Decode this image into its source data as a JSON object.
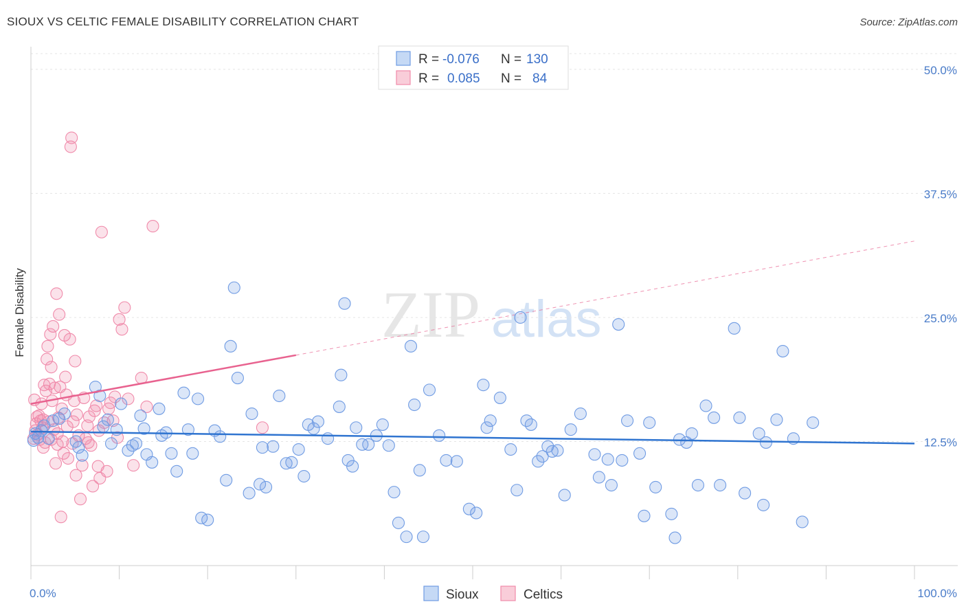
{
  "title": "SIOUX VS CELTIC FEMALE DISABILITY CORRELATION CHART",
  "source": "Source: ZipAtlas.com",
  "colors": {
    "sioux": "#6f9be3",
    "celtics": "#f08aaa",
    "sioux_line": "#2f74d0",
    "celtics_line": "#e8628f",
    "tick_text": "#4a7cc9"
  },
  "legend_box": [
    {
      "r_label": "R = ",
      "r_value": "-0.076",
      "n_label": "N = ",
      "n_value": "130"
    },
    {
      "r_label": "R = ",
      "r_value": "0.085",
      "n_label": "N = ",
      "n_value": "84"
    }
  ],
  "bottom_legend": [
    "Sioux",
    "Celtics"
  ],
  "watermark": {
    "zip": "ZIP",
    "atlas": "atlas"
  },
  "chart_data": {
    "type": "scatter",
    "title": "SIOUX VS CELTIC FEMALE DISABILITY CORRELATION CHART",
    "xlabel": "",
    "ylabel": "Female Disability",
    "xlim": [
      0,
      100
    ],
    "ylim": [
      0,
      52
    ],
    "x_tick_labels": [
      "0.0%",
      "100.0%"
    ],
    "y_ticks": [
      12.5,
      25.0,
      37.5,
      50.0
    ],
    "y_tick_labels": [
      "12.5%",
      "25.0%",
      "37.5%",
      "50.0%"
    ],
    "grid": true,
    "legend": "top-center",
    "series": [
      {
        "name": "Sioux",
        "trend": {
          "x": [
            0,
            100
          ],
          "y": [
            13.5,
            12.3
          ],
          "style": "solid"
        },
        "points": [
          [
            0.3,
            12.6
          ],
          [
            0.5,
            13.3
          ],
          [
            0.8,
            12.9
          ],
          [
            1.2,
            13.6
          ],
          [
            1.5,
            14.1
          ],
          [
            2.0,
            12.8
          ],
          [
            2.5,
            14.6
          ],
          [
            3.2,
            14.8
          ],
          [
            3.8,
            15.3
          ],
          [
            5.1,
            12.5
          ],
          [
            5.4,
            11.9
          ],
          [
            5.8,
            11.1
          ],
          [
            7.3,
            18.0
          ],
          [
            7.8,
            17.1
          ],
          [
            8.2,
            14.0
          ],
          [
            8.7,
            14.7
          ],
          [
            9.1,
            12.3
          ],
          [
            9.7,
            13.7
          ],
          [
            10.2,
            16.3
          ],
          [
            11.0,
            11.6
          ],
          [
            11.5,
            12.1
          ],
          [
            11.9,
            12.3
          ],
          [
            12.4,
            15.1
          ],
          [
            12.8,
            13.8
          ],
          [
            13.1,
            11.2
          ],
          [
            13.7,
            10.4
          ],
          [
            14.5,
            15.8
          ],
          [
            14.8,
            13.1
          ],
          [
            15.3,
            13.4
          ],
          [
            15.9,
            11.3
          ],
          [
            16.5,
            9.5
          ],
          [
            17.3,
            17.4
          ],
          [
            17.8,
            13.7
          ],
          [
            18.3,
            11.3
          ],
          [
            18.9,
            16.8
          ],
          [
            19.3,
            4.8
          ],
          [
            20.0,
            4.6
          ],
          [
            20.8,
            13.6
          ],
          [
            21.4,
            13.0
          ],
          [
            22.1,
            8.6
          ],
          [
            22.6,
            22.1
          ],
          [
            23.0,
            28.0
          ],
          [
            23.4,
            18.9
          ],
          [
            24.7,
            7.3
          ],
          [
            25.0,
            15.3
          ],
          [
            25.9,
            8.2
          ],
          [
            26.2,
            11.9
          ],
          [
            26.6,
            7.9
          ],
          [
            27.4,
            12.0
          ],
          [
            28.1,
            17.1
          ],
          [
            28.9,
            10.3
          ],
          [
            29.5,
            10.4
          ],
          [
            30.3,
            11.7
          ],
          [
            30.9,
            9.0
          ],
          [
            31.4,
            14.2
          ],
          [
            32.0,
            13.8
          ],
          [
            32.5,
            14.5
          ],
          [
            33.6,
            12.8
          ],
          [
            34.9,
            16.0
          ],
          [
            35.1,
            19.2
          ],
          [
            35.5,
            26.4
          ],
          [
            35.9,
            10.6
          ],
          [
            36.4,
            10.0
          ],
          [
            36.8,
            13.9
          ],
          [
            37.5,
            12.2
          ],
          [
            38.2,
            12.2
          ],
          [
            39.1,
            13.1
          ],
          [
            39.8,
            14.2
          ],
          [
            40.5,
            12.1
          ],
          [
            41.1,
            7.4
          ],
          [
            41.6,
            4.3
          ],
          [
            42.5,
            2.9
          ],
          [
            43.0,
            22.1
          ],
          [
            43.4,
            16.2
          ],
          [
            44.0,
            9.6
          ],
          [
            44.4,
            2.9
          ],
          [
            45.1,
            17.7
          ],
          [
            46.2,
            13.1
          ],
          [
            47.0,
            10.6
          ],
          [
            48.2,
            10.5
          ],
          [
            49.6,
            5.7
          ],
          [
            50.4,
            5.3
          ],
          [
            51.2,
            18.2
          ],
          [
            51.6,
            13.9
          ],
          [
            52.0,
            14.6
          ],
          [
            53.1,
            16.9
          ],
          [
            54.3,
            11.7
          ],
          [
            55.0,
            7.6
          ],
          [
            55.4,
            25.0
          ],
          [
            56.1,
            14.6
          ],
          [
            56.6,
            14.2
          ],
          [
            57.4,
            10.5
          ],
          [
            57.9,
            11.0
          ],
          [
            58.5,
            12.0
          ],
          [
            59.0,
            11.5
          ],
          [
            59.6,
            11.6
          ],
          [
            60.4,
            7.1
          ],
          [
            61.1,
            13.7
          ],
          [
            62.2,
            15.3
          ],
          [
            63.8,
            11.2
          ],
          [
            64.3,
            8.9
          ],
          [
            65.3,
            10.7
          ],
          [
            65.7,
            8.1
          ],
          [
            66.5,
            24.3
          ],
          [
            66.9,
            10.6
          ],
          [
            67.5,
            14.6
          ],
          [
            68.9,
            11.3
          ],
          [
            69.4,
            5.0
          ],
          [
            70.0,
            14.4
          ],
          [
            70.7,
            7.9
          ],
          [
            72.5,
            5.2
          ],
          [
            72.9,
            2.8
          ],
          [
            73.4,
            12.7
          ],
          [
            74.2,
            12.4
          ],
          [
            74.8,
            13.3
          ],
          [
            75.5,
            8.1
          ],
          [
            76.4,
            16.1
          ],
          [
            77.3,
            14.9
          ],
          [
            78.0,
            8.1
          ],
          [
            79.6,
            23.9
          ],
          [
            80.2,
            14.9
          ],
          [
            80.8,
            7.3
          ],
          [
            82.4,
            13.3
          ],
          [
            82.9,
            6.1
          ],
          [
            83.2,
            12.4
          ],
          [
            84.4,
            14.7
          ],
          [
            85.1,
            21.6
          ],
          [
            86.3,
            12.8
          ],
          [
            87.3,
            4.4
          ],
          [
            88.5,
            14.4
          ]
        ]
      },
      {
        "name": "Celtics",
        "trend": {
          "x": [
            0,
            30
          ],
          "y": [
            16.3,
            21.2
          ],
          "style": "solid",
          "extension_x": [
            30,
            100
          ],
          "extension_y": [
            21.2,
            32.7
          ],
          "extension_style": "dashed"
        },
        "points": [
          [
            0.3,
            12.8
          ],
          [
            0.5,
            13.6
          ],
          [
            0.6,
            14.3
          ],
          [
            0.7,
            15.0
          ],
          [
            0.8,
            13.2
          ],
          [
            1.0,
            12.7
          ],
          [
            1.1,
            14.6
          ],
          [
            1.2,
            16.3
          ],
          [
            1.3,
            13.9
          ],
          [
            1.4,
            14.7
          ],
          [
            1.5,
            18.2
          ],
          [
            1.6,
            12.4
          ],
          [
            1.7,
            17.6
          ],
          [
            1.8,
            20.8
          ],
          [
            1.9,
            22.1
          ],
          [
            2.0,
            14.5
          ],
          [
            2.1,
            18.3
          ],
          [
            2.2,
            23.3
          ],
          [
            2.3,
            12.7
          ],
          [
            2.4,
            16.6
          ],
          [
            2.5,
            24.1
          ],
          [
            2.6,
            13.7
          ],
          [
            2.7,
            17.9
          ],
          [
            2.8,
            10.3
          ],
          [
            2.9,
            27.4
          ],
          [
            3.0,
            12.2
          ],
          [
            3.1,
            14.9
          ],
          [
            3.2,
            25.3
          ],
          [
            3.3,
            18.0
          ],
          [
            3.4,
            4.9
          ],
          [
            3.5,
            15.8
          ],
          [
            3.6,
            12.5
          ],
          [
            3.7,
            11.3
          ],
          [
            3.8,
            23.2
          ],
          [
            3.9,
            19.0
          ],
          [
            4.0,
            17.2
          ],
          [
            4.2,
            10.8
          ],
          [
            4.4,
            22.8
          ],
          [
            4.5,
            42.2
          ],
          [
            4.6,
            43.1
          ],
          [
            4.7,
            12.3
          ],
          [
            4.8,
            14.5
          ],
          [
            4.9,
            16.6
          ],
          [
            5.0,
            20.6
          ],
          [
            5.2,
            15.2
          ],
          [
            5.4,
            13.1
          ],
          [
            5.6,
            6.7
          ],
          [
            5.8,
            10.1
          ],
          [
            6.0,
            16.9
          ],
          [
            6.2,
            12.8
          ],
          [
            6.4,
            14.1
          ],
          [
            6.6,
            15.0
          ],
          [
            6.8,
            12.1
          ],
          [
            7.0,
            8.0
          ],
          [
            7.2,
            15.6
          ],
          [
            7.4,
            16.1
          ],
          [
            7.6,
            10.0
          ],
          [
            7.8,
            8.8
          ],
          [
            8.0,
            33.6
          ],
          [
            8.3,
            14.4
          ],
          [
            8.6,
            9.5
          ],
          [
            9.0,
            16.4
          ],
          [
            9.3,
            14.6
          ],
          [
            9.5,
            17.0
          ],
          [
            9.8,
            12.9
          ],
          [
            10.0,
            24.8
          ],
          [
            10.3,
            23.8
          ],
          [
            10.6,
            26.0
          ],
          [
            11.0,
            16.8
          ],
          [
            11.6,
            10.1
          ],
          [
            12.5,
            18.9
          ],
          [
            13.1,
            16.0
          ],
          [
            13.8,
            34.2
          ],
          [
            0.9,
            15.1
          ],
          [
            1.4,
            11.9
          ],
          [
            2.3,
            20.0
          ],
          [
            3.0,
            13.3
          ],
          [
            4.1,
            14.0
          ],
          [
            5.1,
            9.1
          ],
          [
            6.5,
            12.4
          ],
          [
            7.7,
            13.6
          ],
          [
            8.8,
            15.8
          ],
          [
            26.2,
            13.9
          ],
          [
            0.4,
            16.7
          ]
        ]
      }
    ]
  }
}
